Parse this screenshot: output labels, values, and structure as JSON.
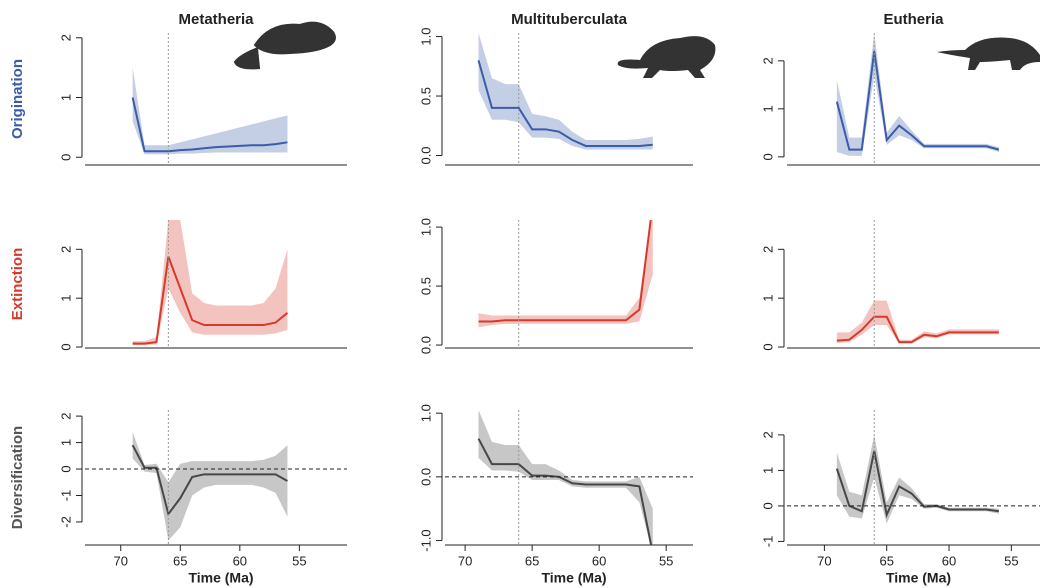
{
  "chart_data": [
    {
      "type": "line",
      "title": "Metatheria",
      "ylabel": "Origination",
      "label_color": "#3b5ca8",
      "x": [
        69,
        68,
        67,
        66,
        65,
        64,
        63,
        62,
        61,
        60,
        59,
        58,
        57,
        56
      ],
      "xlim": [
        73,
        51
      ],
      "series": [
        {
          "color": "#3b5ca8",
          "values": [
            1.0,
            0.1,
            0.1,
            0.1,
            0.12,
            0.13,
            0.15,
            0.17,
            0.18,
            0.19,
            0.2,
            0.2,
            0.22,
            0.25
          ],
          "lower": [
            0.6,
            0.05,
            0.05,
            0.05,
            0.06,
            0.06,
            0.07,
            0.08,
            0.08,
            0.08,
            0.08,
            0.08,
            0.08,
            0.08
          ],
          "upper": [
            1.5,
            0.2,
            0.2,
            0.2,
            0.25,
            0.3,
            0.35,
            0.4,
            0.45,
            0.5,
            0.55,
            0.6,
            0.65,
            0.7
          ]
        }
      ],
      "ylim": [
        -0.13,
        2.08
      ],
      "yticks": [
        0,
        1,
        2
      ],
      "event_line": 66
    },
    {
      "type": "line",
      "title": "Multituberculata",
      "x": [
        69,
        68,
        67,
        66,
        65,
        64,
        63,
        62,
        61,
        60,
        59,
        58,
        57,
        56
      ],
      "xlim": [
        71.5,
        53
      ],
      "series": [
        {
          "color": "#3b5ca8",
          "values": [
            0.8,
            0.4,
            0.4,
            0.4,
            0.22,
            0.22,
            0.2,
            0.13,
            0.08,
            0.08,
            0.08,
            0.08,
            0.08,
            0.09
          ],
          "lower": [
            0.55,
            0.3,
            0.3,
            0.28,
            0.15,
            0.15,
            0.14,
            0.08,
            0.05,
            0.05,
            0.05,
            0.05,
            0.05,
            0.05
          ],
          "upper": [
            1.03,
            0.65,
            0.6,
            0.6,
            0.35,
            0.33,
            0.3,
            0.2,
            0.13,
            0.13,
            0.13,
            0.13,
            0.14,
            0.16
          ]
        }
      ],
      "ylim": [
        -0.08,
        1.03
      ],
      "yticks": [
        {
          "value": 0,
          "label": "0.0"
        },
        0.5,
        {
          "value": 1,
          "label": "1.0"
        }
      ],
      "event_line": 66
    },
    {
      "type": "line",
      "title": "Eutheria",
      "x": [
        69,
        68,
        67,
        66,
        65,
        64,
        63,
        62,
        61,
        60,
        59,
        58,
        57,
        56
      ],
      "xlim": [
        73,
        52.7
      ],
      "series": [
        {
          "color": "#3b5ca8",
          "values": [
            1.15,
            0.15,
            0.15,
            2.2,
            0.35,
            0.65,
            0.45,
            0.22,
            0.22,
            0.22,
            0.22,
            0.22,
            0.22,
            0.15
          ],
          "lower": [
            0.1,
            0.02,
            0.02,
            1.7,
            0.25,
            0.45,
            0.35,
            0.18,
            0.18,
            0.18,
            0.18,
            0.18,
            0.18,
            0.1
          ],
          "upper": [
            1.6,
            0.4,
            0.4,
            2.58,
            0.5,
            0.85,
            0.55,
            0.27,
            0.27,
            0.27,
            0.27,
            0.27,
            0.27,
            0.2
          ]
        }
      ],
      "ylim": [
        -0.17,
        2.58
      ],
      "yticks": [
        0,
        1,
        2
      ],
      "event_line": 66
    },
    {
      "type": "line",
      "ylabel": "Extinction",
      "label_color": "#d63a2a",
      "x": [
        69,
        68,
        67,
        66,
        65,
        64,
        63,
        62,
        61,
        60,
        59,
        58,
        57,
        56
      ],
      "xlim": [
        73,
        51
      ],
      "series": [
        {
          "color": "#d63a2a",
          "values": [
            0.07,
            0.07,
            0.1,
            1.85,
            1.2,
            0.55,
            0.45,
            0.45,
            0.45,
            0.45,
            0.45,
            0.45,
            0.5,
            0.7
          ],
          "lower": [
            0.04,
            0.04,
            0.05,
            1.2,
            0.7,
            0.3,
            0.25,
            0.25,
            0.25,
            0.25,
            0.25,
            0.25,
            0.28,
            0.35
          ],
          "upper": [
            0.12,
            0.12,
            0.2,
            2.6,
            2.6,
            1.1,
            0.9,
            0.85,
            0.85,
            0.85,
            0.85,
            0.9,
            1.2,
            2.0
          ]
        }
      ],
      "ylim": [
        -0.02,
        2.6
      ],
      "yticks": [
        0,
        1,
        2
      ],
      "event_line": 66
    },
    {
      "type": "line",
      "x": [
        69,
        68,
        67,
        66,
        65,
        64,
        63,
        62,
        61,
        60,
        59,
        58,
        57,
        56
      ],
      "xlim": [
        71.5,
        53
      ],
      "series": [
        {
          "color": "#d63a2a",
          "values": [
            0.2,
            0.2,
            0.21,
            0.21,
            0.21,
            0.21,
            0.21,
            0.21,
            0.21,
            0.21,
            0.21,
            0.21,
            0.3,
            1.2
          ],
          "lower": [
            0.15,
            0.17,
            0.18,
            0.18,
            0.18,
            0.18,
            0.18,
            0.18,
            0.18,
            0.18,
            0.18,
            0.18,
            0.2,
            0.6
          ],
          "upper": [
            0.27,
            0.25,
            0.25,
            0.25,
            0.25,
            0.25,
            0.25,
            0.25,
            0.25,
            0.25,
            0.25,
            0.25,
            0.4,
            1.2
          ]
        }
      ],
      "ylim": [
        -0.025,
        1.06
      ],
      "yticks": [
        {
          "value": 0,
          "label": "0.0"
        },
        0.5,
        {
          "value": 1,
          "label": "1.0"
        }
      ],
      "event_line": 66
    },
    {
      "type": "line",
      "x": [
        69,
        68,
        67,
        66,
        65,
        64,
        63,
        62,
        61,
        60,
        59,
        58,
        57,
        56
      ],
      "xlim": [
        73,
        52.7
      ],
      "series": [
        {
          "color": "#d63a2a",
          "values": [
            0.13,
            0.15,
            0.35,
            0.62,
            0.62,
            0.1,
            0.1,
            0.25,
            0.22,
            0.3,
            0.3,
            0.3,
            0.3,
            0.3
          ],
          "lower": [
            0.08,
            0.1,
            0.25,
            0.45,
            0.45,
            0.07,
            0.07,
            0.2,
            0.18,
            0.26,
            0.26,
            0.26,
            0.26,
            0.26
          ],
          "upper": [
            0.3,
            0.3,
            0.5,
            0.95,
            0.95,
            0.15,
            0.15,
            0.32,
            0.28,
            0.36,
            0.36,
            0.36,
            0.36,
            0.36
          ]
        }
      ],
      "ylim": [
        -0.02,
        2.6
      ],
      "yticks": [
        0,
        1,
        2
      ],
      "event_line": 66
    },
    {
      "type": "line",
      "ylabel": "Diversification",
      "label_color": "#555555",
      "xlabel": "Time (Ma)",
      "x": [
        69,
        68,
        67,
        66,
        65,
        64,
        63,
        62,
        61,
        60,
        59,
        58,
        57,
        56
      ],
      "xlim": [
        73,
        51
      ],
      "xticks": [
        70,
        65,
        60,
        55
      ],
      "series": [
        {
          "color": "#474747",
          "values": [
            0.9,
            0.05,
            0.05,
            -1.7,
            -1.1,
            -0.3,
            -0.2,
            -0.2,
            -0.2,
            -0.2,
            -0.2,
            -0.2,
            -0.2,
            -0.45
          ],
          "lower": [
            0.4,
            -0.1,
            -0.15,
            -2.7,
            -2.2,
            -1.0,
            -0.7,
            -0.6,
            -0.6,
            -0.6,
            -0.6,
            -0.7,
            -0.9,
            -1.8
          ],
          "upper": [
            1.4,
            0.15,
            0.2,
            -0.5,
            0.2,
            0.3,
            0.3,
            0.3,
            0.3,
            0.3,
            0.3,
            0.35,
            0.5,
            0.9
          ]
        }
      ],
      "ylim": [
        -2.87,
        2.23
      ],
      "yticks": [
        -2,
        -1,
        0,
        1,
        2
      ],
      "event_line": 66,
      "zero_line": 0
    },
    {
      "type": "line",
      "xlabel": "Time (Ma)",
      "x": [
        69,
        68,
        67,
        66,
        65,
        64,
        63,
        62,
        61,
        60,
        59,
        58,
        57,
        56
      ],
      "xlim": [
        71.5,
        53
      ],
      "xticks": [
        70,
        65,
        60,
        55
      ],
      "series": [
        {
          "color": "#474747",
          "values": [
            0.6,
            0.2,
            0.2,
            0.2,
            0.02,
            0.02,
            0.0,
            -0.1,
            -0.12,
            -0.12,
            -0.12,
            -0.12,
            -0.15,
            -1.2
          ],
          "lower": [
            0.3,
            0.1,
            0.1,
            0.08,
            -0.05,
            -0.05,
            -0.05,
            -0.15,
            -0.17,
            -0.17,
            -0.17,
            -0.17,
            -0.4,
            -1.2
          ],
          "upper": [
            1.05,
            0.55,
            0.5,
            0.5,
            0.2,
            0.2,
            0.1,
            -0.05,
            -0.07,
            -0.07,
            -0.07,
            -0.07,
            0.0,
            -0.5
          ]
        }
      ],
      "ylim": [
        -1.07,
        1.05
      ],
      "yticks": [
        {
          "value": -1,
          "label": "-1.0"
        },
        {
          "value": 0,
          "label": "0.0"
        },
        {
          "value": 1,
          "label": "1.0"
        }
      ],
      "event_line": 66,
      "zero_line": 0
    },
    {
      "type": "line",
      "xlabel": "Time (Ma)",
      "x": [
        69,
        68,
        67,
        66,
        65,
        64,
        63,
        62,
        61,
        60,
        59,
        58,
        57,
        56
      ],
      "xlim": [
        73,
        52.7
      ],
      "xticks": [
        70,
        65,
        60,
        55
      ],
      "series": [
        {
          "color": "#474747",
          "values": [
            1.05,
            0.0,
            -0.15,
            1.55,
            -0.25,
            0.55,
            0.35,
            -0.02,
            0.0,
            -0.1,
            -0.1,
            -0.1,
            -0.1,
            -0.15
          ],
          "lower": [
            0.3,
            -0.3,
            -0.35,
            0.8,
            -0.5,
            0.3,
            0.2,
            -0.08,
            -0.05,
            -0.15,
            -0.15,
            -0.15,
            -0.15,
            -0.22
          ],
          "upper": [
            1.5,
            0.4,
            0.3,
            2.0,
            0.1,
            0.8,
            0.5,
            0.05,
            0.05,
            -0.05,
            -0.05,
            -0.05,
            -0.05,
            -0.08
          ]
        }
      ],
      "ylim": [
        -1.1,
        2.7
      ],
      "yticks": [
        -1,
        0,
        1,
        2
      ],
      "event_line": 66,
      "zero_line": 0
    }
  ]
}
